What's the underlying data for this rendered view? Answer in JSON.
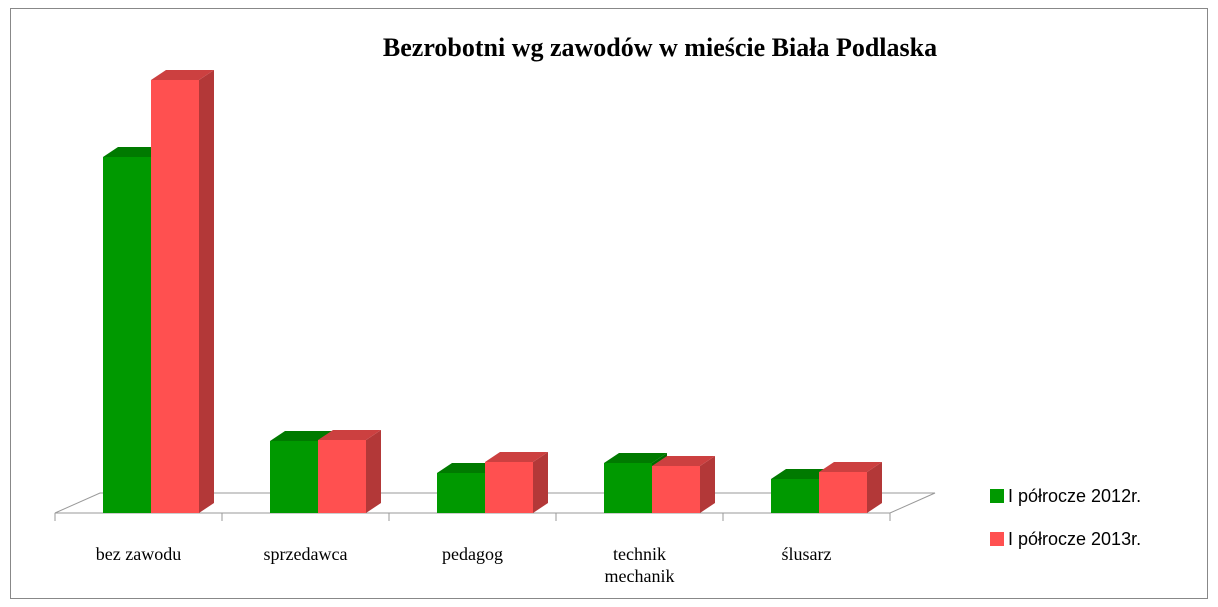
{
  "chart_data": {
    "type": "bar3d",
    "title": "Bezrobotni wg zawodów w mieście Biała Podlaska",
    "categories": [
      "bez zawodu",
      "sprzedawca",
      "pedagog",
      "technik mechanik",
      "ślusarz"
    ],
    "series": [
      {
        "name": "I półrocze 2012r.",
        "color": "#009900",
        "values": [
          356,
          72,
          40,
          50,
          34
        ]
      },
      {
        "name": "I półrocze 2013r.",
        "color": "#ff5050",
        "values": [
          433,
          73,
          51,
          47,
          41
        ]
      }
    ],
    "ylim": [
      0,
      440
    ],
    "legend": "right"
  }
}
